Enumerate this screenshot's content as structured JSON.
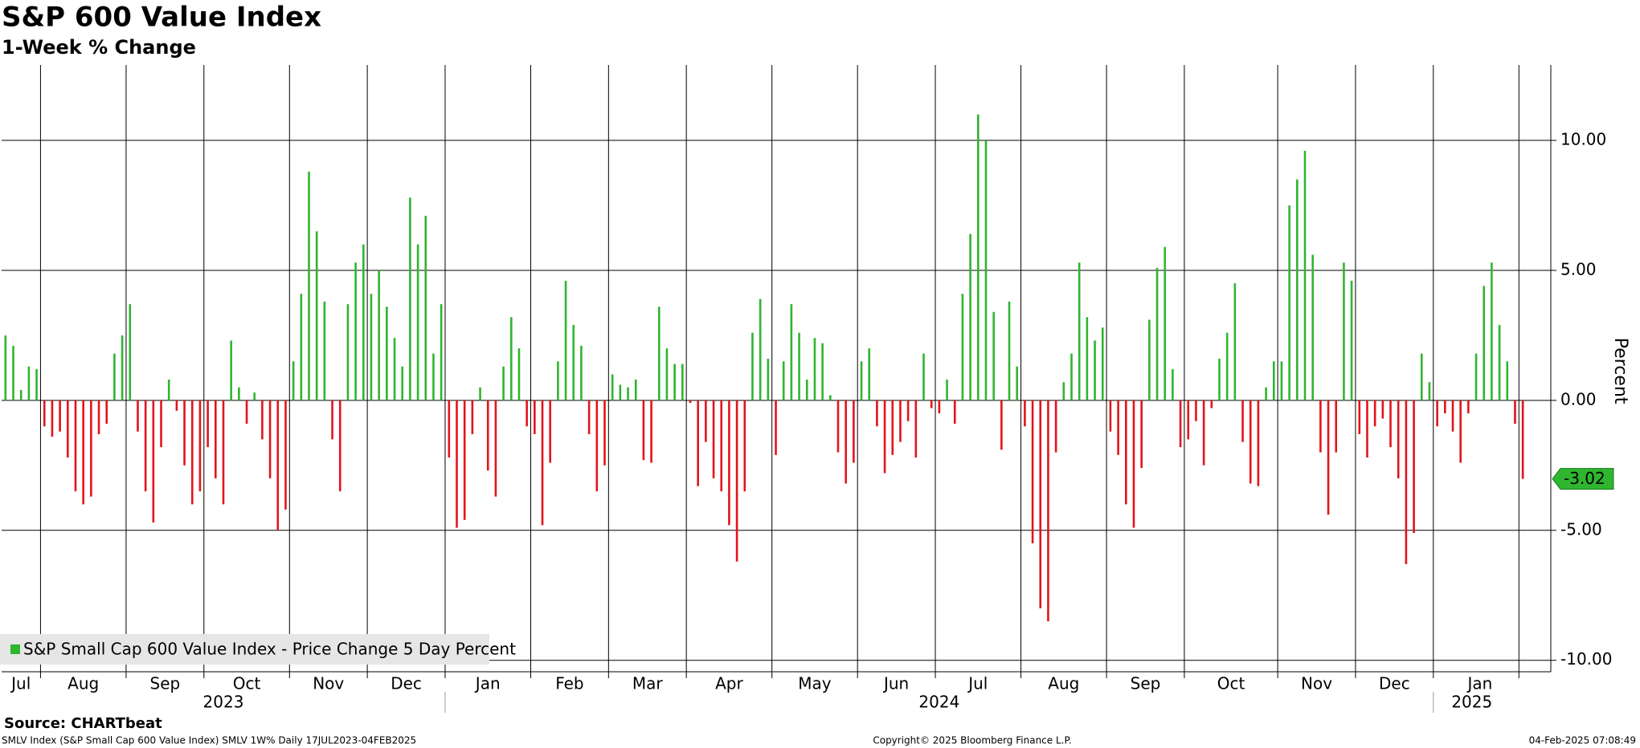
{
  "chart_data": {
    "type": "bar",
    "title": "S&P 600 Value Index",
    "subtitle": "1-Week % Change",
    "y_label": "Percent",
    "source": "Source: CHARTbeat",
    "footer_left": "SMLV Index (S&P Small Cap 600 Value Index) SMLV 1W%  Daily 17JUL2023-04FEB2025",
    "footer_center": "Copyright© 2025 Bloomberg Finance L.P.",
    "footer_right": "04-Feb-2025 07:08:49",
    "years": [
      "2023",
      "2024",
      "2025"
    ],
    "categories": [
      "Jul",
      null,
      null,
      null,
      null,
      "Aug",
      null,
      null,
      null,
      null,
      null,
      null,
      null,
      null,
      null,
      null,
      "Sep",
      null,
      null,
      null,
      null,
      null,
      null,
      null,
      null,
      null,
      "Oct",
      null,
      null,
      null,
      null,
      null,
      null,
      null,
      null,
      null,
      null,
      "Nov",
      null,
      null,
      null,
      null,
      null,
      null,
      null,
      null,
      null,
      "Dec",
      null,
      null,
      null,
      null,
      null,
      null,
      null,
      null,
      null,
      "Jan",
      null,
      null,
      null,
      null,
      null,
      null,
      null,
      null,
      null,
      null,
      "Feb",
      null,
      null,
      null,
      null,
      null,
      null,
      null,
      null,
      null,
      "Mar",
      null,
      null,
      null,
      null,
      null,
      null,
      null,
      null,
      null,
      "Apr",
      null,
      null,
      null,
      null,
      null,
      null,
      null,
      null,
      null,
      null,
      "May",
      null,
      null,
      null,
      null,
      null,
      null,
      null,
      null,
      null,
      null,
      "Jun",
      null,
      null,
      null,
      null,
      null,
      null,
      null,
      null,
      null,
      "Jul",
      null,
      null,
      null,
      null,
      null,
      null,
      null,
      null,
      null,
      null,
      "Aug",
      null,
      null,
      null,
      null,
      null,
      null,
      null,
      null,
      null,
      null,
      "Sep",
      null,
      null,
      null,
      null,
      null,
      null,
      null,
      null,
      null,
      "Oct",
      null,
      null,
      null,
      null,
      null,
      null,
      null,
      null,
      null,
      null,
      null,
      "Nov",
      null,
      null,
      null,
      null,
      null,
      null,
      null,
      null,
      null,
      "Dec",
      null,
      null,
      null,
      null,
      null,
      null,
      null,
      null,
      null,
      "Jan",
      null,
      null,
      null,
      null,
      null,
      null,
      null,
      null,
      null,
      null,
      null
    ],
    "series": [
      {
        "name": "S&P Small Cap 600 Value Index - Price Change 5 Day Percent",
        "color": "#2fb52f",
        "neg_color": "#e3141b",
        "values": [
          2.5,
          2.1,
          0.4,
          1.3,
          1.2,
          -1.0,
          -1.4,
          -1.2,
          -2.2,
          -3.5,
          -4.0,
          -3.7,
          -1.3,
          -0.9,
          1.8,
          2.5,
          3.7,
          -1.2,
          -3.5,
          -4.7,
          -1.8,
          0.8,
          -0.4,
          -2.5,
          -4.0,
          -3.5,
          -1.8,
          -3.0,
          -4.0,
          2.3,
          0.5,
          -0.9,
          0.3,
          -1.5,
          -3.0,
          -5.0,
          -4.2,
          1.5,
          4.1,
          8.8,
          6.5,
          3.8,
          -1.5,
          -3.5,
          3.7,
          5.3,
          6.0,
          4.1,
          5.0,
          3.6,
          2.4,
          1.3,
          7.8,
          6.0,
          7.1,
          1.8,
          3.7,
          -2.2,
          -4.9,
          -4.6,
          -1.3,
          0.5,
          -2.7,
          -3.7,
          1.3,
          3.2,
          2.0,
          -1.0,
          -1.3,
          -4.8,
          -2.4,
          1.5,
          4.6,
          2.9,
          2.1,
          -1.3,
          -3.5,
          -2.5,
          1.0,
          0.6,
          0.5,
          0.8,
          -2.3,
          -2.4,
          3.6,
          2.0,
          1.4,
          1.4,
          -0.1,
          -3.3,
          -1.6,
          -3.0,
          -3.5,
          -4.8,
          -6.2,
          -3.5,
          2.6,
          3.9,
          1.6,
          -2.1,
          1.5,
          3.7,
          2.6,
          0.8,
          2.4,
          2.2,
          0.2,
          -2.0,
          -3.2,
          -2.4,
          1.5,
          2.0,
          -1.0,
          -2.8,
          -2.1,
          -1.6,
          -0.8,
          -2.2,
          1.8,
          -0.3,
          -0.5,
          0.8,
          -0.9,
          4.1,
          6.4,
          11.0,
          10.0,
          3.4,
          -1.9,
          3.8,
          1.3,
          -1.0,
          -5.5,
          -8.0,
          -8.5,
          -2.0,
          0.7,
          1.8,
          5.3,
          3.2,
          2.3,
          2.8,
          -1.2,
          -2.1,
          -4.0,
          -4.9,
          -2.6,
          3.1,
          5.1,
          5.9,
          1.2,
          -1.8,
          -1.5,
          -0.8,
          -2.5,
          -0.3,
          1.6,
          2.6,
          4.5,
          -1.6,
          -3.2,
          -3.3,
          0.5,
          1.5,
          1.5,
          7.5,
          8.5,
          9.6,
          5.6,
          -2.0,
          -4.4,
          -2.0,
          5.3,
          4.6,
          -1.3,
          -2.2,
          -1.0,
          -0.7,
          -1.8,
          -3.0,
          -6.3,
          -5.1,
          1.8,
          0.7,
          -1.0,
          -0.5,
          -1.2,
          -2.4,
          -0.5,
          1.8,
          4.4,
          5.3,
          2.9,
          1.5,
          -0.9,
          -3.02
        ]
      }
    ],
    "ylim": [
      -10.44,
      12.9
    ],
    "yticks": [
      {
        "value": -10,
        "label": "-10.00"
      },
      {
        "value": -5,
        "label": "-5.00"
      },
      {
        "value": 0,
        "label": "0.00"
      },
      {
        "value": 5,
        "label": "5.00"
      },
      {
        "value": 10,
        "label": "10.00"
      }
    ],
    "grid": true,
    "legend": "lower-left"
  }
}
